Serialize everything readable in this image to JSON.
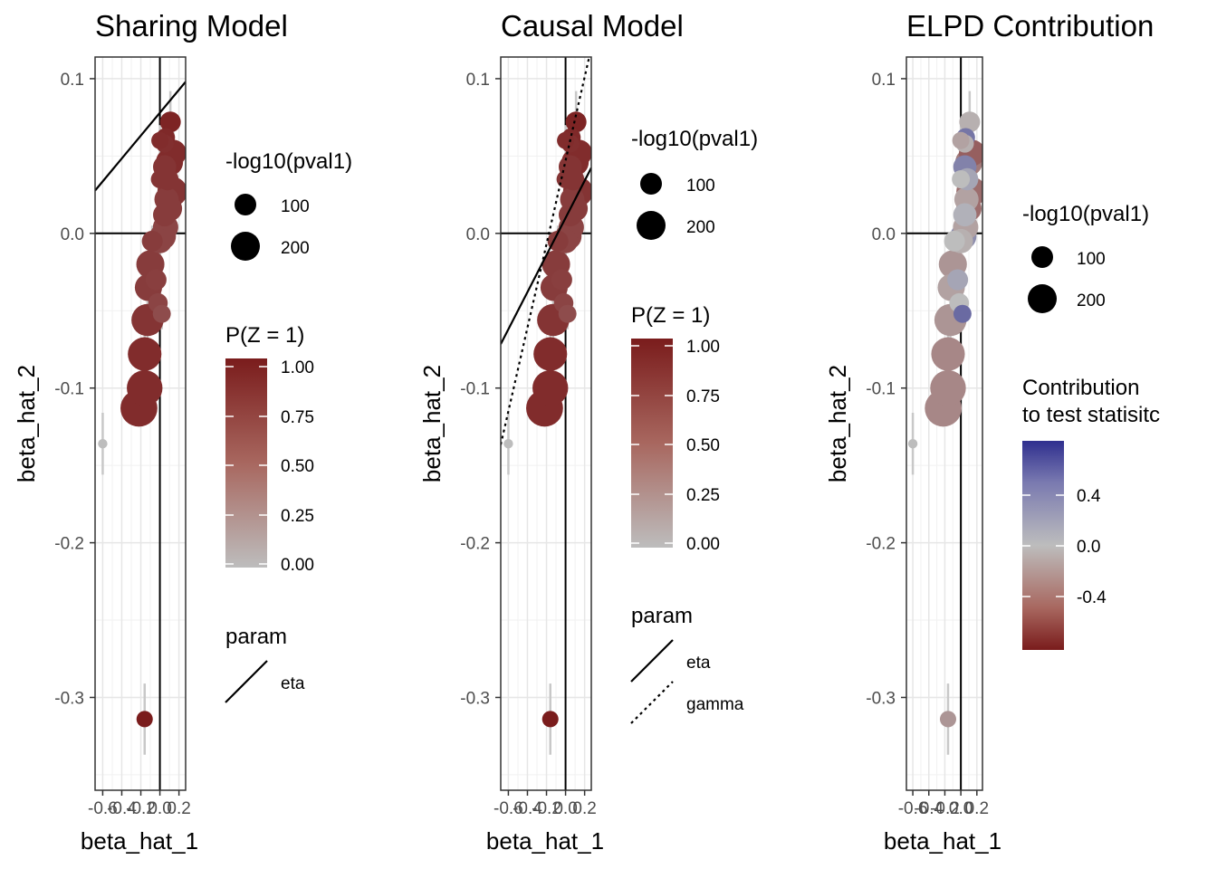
{
  "chart_data": [
    {
      "type": "scatter",
      "title": "Sharing Model",
      "xlabel": "beta_hat_1",
      "ylabel": "beta_hat_2",
      "x_ticks": [
        "-0.6",
        "-0.4",
        "-0.2",
        "0.0",
        "0.2"
      ],
      "y_ticks": [
        "0.1",
        "0.0",
        "-0.1",
        "-0.2",
        "-0.3"
      ],
      "xlim": [
        -0.68,
        0.27
      ],
      "ylim": [
        -0.36,
        0.114
      ],
      "grid": true,
      "color_by": "p_z",
      "lines": [
        {
          "param": "eta",
          "style": "solid",
          "intercept": 0.078,
          "slope": 0.074
        }
      ],
      "legends": {
        "size": {
          "title": "-log10(pval1)",
          "labels": [
            "100",
            "200"
          ]
        },
        "color": {
          "title": "P(Z = 1)",
          "labels": [
            "1.00",
            "0.75",
            "0.50",
            "0.25",
            "0.00"
          ],
          "colors": [
            "#7a1c1c",
            "#b9b9b9"
          ]
        },
        "linetype": {
          "title": "param",
          "labels": [
            "eta"
          ]
        }
      }
    },
    {
      "type": "scatter",
      "title": "Causal Model",
      "xlabel": "beta_hat_1",
      "ylabel": "beta_hat_2",
      "x_ticks": [
        "-0.6",
        "-0.4",
        "-0.2",
        "0.0",
        "0.2"
      ],
      "y_ticks": [
        "0.1",
        "0.0",
        "-0.1",
        "-0.2",
        "-0.3"
      ],
      "xlim": [
        -0.68,
        0.27
      ],
      "ylim": [
        -0.36,
        0.114
      ],
      "grid": true,
      "color_by": "p_z",
      "lines": [
        {
          "param": "eta",
          "style": "solid",
          "intercept": 0.01,
          "slope": 0.12
        },
        {
          "param": "gamma",
          "style": "dotted",
          "intercept": 0.047,
          "slope": 0.27
        }
      ],
      "legends": {
        "size": {
          "title": "-log10(pval1)",
          "labels": [
            "100",
            "200"
          ]
        },
        "color": {
          "title": "P(Z = 1)",
          "labels": [
            "1.00",
            "0.75",
            "0.50",
            "0.25",
            "0.00"
          ],
          "colors": [
            "#7a1c1c",
            "#b9b9b9"
          ]
        },
        "linetype": {
          "title": "param",
          "labels": [
            "eta",
            "gamma"
          ]
        }
      }
    },
    {
      "type": "scatter",
      "title": "ELPD Contribution",
      "xlabel": "beta_hat_1",
      "ylabel": "beta_hat_2",
      "x_ticks": [
        "-0.6",
        "-0.4",
        "-0.2",
        "0.0",
        "0.2"
      ],
      "y_ticks": [
        "0.1",
        "0.0",
        "-0.1",
        "-0.2",
        "-0.3"
      ],
      "xlim": [
        -0.68,
        0.27
      ],
      "ylim": [
        -0.36,
        0.114
      ],
      "grid": true,
      "color_by": "contrib",
      "lines": [],
      "legends": {
        "size": {
          "title": "-log10(pval1)",
          "labels": [
            "100",
            "200"
          ]
        },
        "color": {
          "title": [
            "Contribution",
            "to test statisitc"
          ],
          "labels": [
            "0.4",
            "0.0",
            "-0.4"
          ],
          "colors": [
            "#2f2f8f",
            "#b9b9b9",
            "#7a1c1c"
          ]
        }
      }
    }
  ],
  "points": [
    {
      "x": 0.11,
      "y": 0.072,
      "size": 60,
      "p_z": 0.95,
      "contrib": -0.05,
      "err_y": 0.02
    },
    {
      "x": 0.06,
      "y": 0.062,
      "size": 45,
      "p_z": 0.92,
      "contrib": 0.3,
      "err_y": 0.01
    },
    {
      "x": 0.0,
      "y": 0.06,
      "size": 35,
      "p_z": 0.9,
      "contrib": -0.1,
      "err_y": 0.01
    },
    {
      "x": 0.05,
      "y": 0.058,
      "size": 40,
      "p_z": 0.88,
      "contrib": -0.05,
      "err_y": 0.01
    },
    {
      "x": 0.14,
      "y": 0.052,
      "size": 110,
      "p_z": 0.9,
      "contrib": -0.35,
      "err_y": 0.015
    },
    {
      "x": 0.1,
      "y": 0.046,
      "size": 120,
      "p_z": 0.9,
      "contrib": -0.25,
      "err_y": 0.01
    },
    {
      "x": 0.05,
      "y": 0.043,
      "size": 80,
      "p_z": 0.85,
      "contrib": 0.25,
      "err_y": 0.01
    },
    {
      "x": 0.08,
      "y": 0.035,
      "size": 70,
      "p_z": 0.85,
      "contrib": 0.1,
      "err_y": 0.01
    },
    {
      "x": 0.0,
      "y": 0.035,
      "size": 40,
      "p_z": 0.85,
      "contrib": 0.0,
      "err_y": 0.01
    },
    {
      "x": 0.13,
      "y": 0.027,
      "size": 150,
      "p_z": 0.85,
      "contrib": -0.3,
      "err_y": 0.01
    },
    {
      "x": 0.07,
      "y": 0.022,
      "size": 90,
      "p_z": 0.8,
      "contrib": -0.1,
      "err_y": 0.01
    },
    {
      "x": 0.1,
      "y": 0.016,
      "size": 100,
      "p_z": 0.8,
      "contrib": -0.3,
      "err_y": 0.01
    },
    {
      "x": 0.05,
      "y": 0.012,
      "size": 80,
      "p_z": 0.8,
      "contrib": 0.05,
      "err_y": 0.01
    },
    {
      "x": 0.06,
      "y": 0.004,
      "size": 100,
      "p_z": 0.75,
      "contrib": -0.1,
      "err_y": 0.01
    },
    {
      "x": 0.03,
      "y": -0.002,
      "size": 110,
      "p_z": 0.75,
      "contrib": 0.2,
      "err_y": 0.01
    },
    {
      "x": 0.0,
      "y": -0.005,
      "size": 90,
      "p_z": 0.75,
      "contrib": -0.05,
      "err_y": 0.01
    },
    {
      "x": -0.08,
      "y": -0.005,
      "size": 60,
      "p_z": 0.8,
      "contrib": 0.0,
      "err_y": 0.01
    },
    {
      "x": -0.1,
      "y": -0.02,
      "size": 130,
      "p_z": 0.8,
      "contrib": -0.15,
      "err_y": 0.015
    },
    {
      "x": -0.04,
      "y": -0.03,
      "size": 60,
      "p_z": 0.78,
      "contrib": 0.1,
      "err_y": 0.01
    },
    {
      "x": -0.12,
      "y": -0.035,
      "size": 120,
      "p_z": 0.8,
      "contrib": -0.1,
      "err_y": 0.01
    },
    {
      "x": -0.02,
      "y": -0.045,
      "size": 50,
      "p_z": 0.75,
      "contrib": 0.0,
      "err_y": 0.01
    },
    {
      "x": -0.13,
      "y": -0.056,
      "size": 180,
      "p_z": 0.85,
      "contrib": -0.15,
      "err_y": 0.012
    },
    {
      "x": 0.02,
      "y": -0.052,
      "size": 40,
      "p_z": 0.7,
      "contrib": 0.35,
      "err_y": 0.01
    },
    {
      "x": -0.16,
      "y": -0.078,
      "size": 200,
      "p_z": 0.9,
      "contrib": -0.2,
      "err_y": 0.012
    },
    {
      "x": -0.16,
      "y": -0.1,
      "size": 230,
      "p_z": 0.9,
      "contrib": -0.2,
      "err_y": 0.012
    },
    {
      "x": -0.22,
      "y": -0.113,
      "size": 250,
      "p_z": 0.9,
      "contrib": -0.2,
      "err_y": 0.012
    },
    {
      "x": -0.6,
      "y": -0.136,
      "size": 4,
      "p_z": 0.0,
      "contrib": 0.0,
      "err_y": 0.02
    },
    {
      "x": -0.16,
      "y": -0.314,
      "size": 30,
      "p_z": 1.0,
      "contrib": -0.15,
      "err_y": 0.023
    }
  ]
}
